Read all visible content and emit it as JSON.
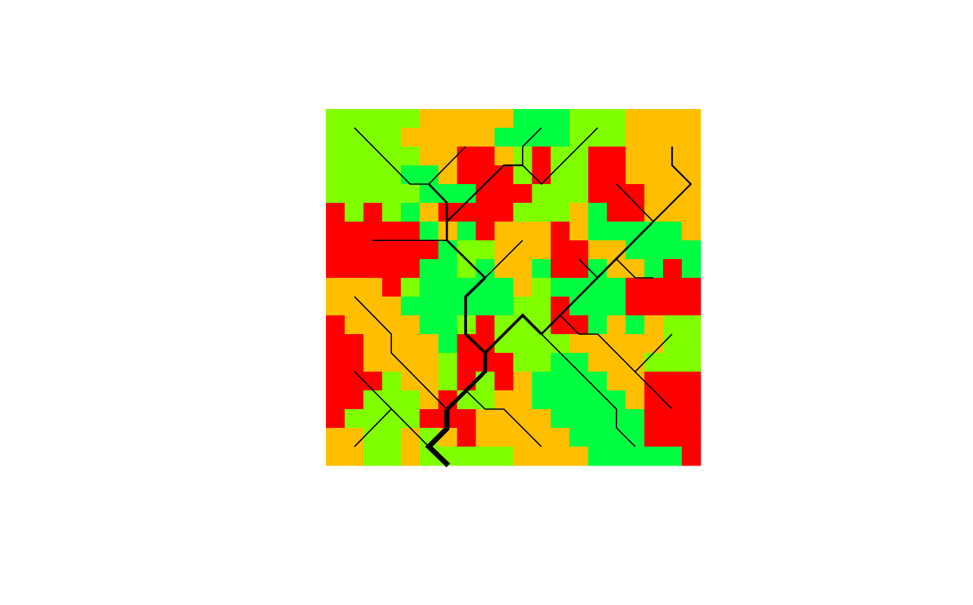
{
  "raster": {
    "colors": [
      "#80ff00",
      "#ffbf00",
      "#ff0000",
      "#00ff40"
    ],
    "cells": [
      [
        0,
        0,
        0,
        0,
        0,
        1,
        1,
        1,
        1,
        1,
        3,
        3,
        3,
        0,
        0,
        0,
        1,
        1,
        1,
        1
      ],
      [
        0,
        0,
        0,
        0,
        1,
        1,
        1,
        1,
        1,
        3,
        3,
        3,
        3,
        0,
        0,
        0,
        1,
        1,
        1,
        1
      ],
      [
        0,
        0,
        0,
        0,
        0,
        1,
        1,
        2,
        2,
        1,
        0,
        2,
        0,
        0,
        2,
        2,
        1,
        1,
        1,
        1
      ],
      [
        0,
        0,
        0,
        0,
        3,
        3,
        1,
        2,
        2,
        2,
        0,
        2,
        0,
        0,
        2,
        2,
        1,
        1,
        1,
        1
      ],
      [
        0,
        0,
        0,
        0,
        0,
        3,
        3,
        3,
        2,
        2,
        2,
        0,
        0,
        0,
        2,
        2,
        2,
        1,
        1,
        1
      ],
      [
        2,
        0,
        2,
        0,
        3,
        1,
        2,
        2,
        2,
        2,
        0,
        0,
        0,
        1,
        3,
        2,
        2,
        1,
        1,
        1
      ],
      [
        2,
        2,
        2,
        2,
        2,
        3,
        1,
        3,
        2,
        1,
        1,
        1,
        2,
        1,
        3,
        3,
        3,
        3,
        3,
        1
      ],
      [
        2,
        2,
        2,
        2,
        2,
        2,
        3,
        0,
        0,
        1,
        1,
        1,
        2,
        2,
        1,
        1,
        3,
        3,
        3,
        3
      ],
      [
        2,
        2,
        2,
        2,
        2,
        3,
        3,
        0,
        3,
        1,
        1,
        3,
        2,
        2,
        3,
        1,
        1,
        3,
        2,
        3
      ],
      [
        1,
        1,
        1,
        2,
        0,
        3,
        3,
        3,
        3,
        3,
        1,
        0,
        3,
        3,
        3,
        3,
        2,
        2,
        2,
        2
      ],
      [
        1,
        1,
        1,
        1,
        3,
        3,
        3,
        3,
        3,
        3,
        0,
        0,
        2,
        3,
        3,
        3,
        2,
        2,
        2,
        2
      ],
      [
        2,
        1,
        1,
        1,
        1,
        3,
        3,
        0,
        2,
        0,
        0,
        0,
        2,
        2,
        3,
        1,
        3,
        1,
        0,
        0
      ],
      [
        2,
        2,
        1,
        1,
        1,
        1,
        3,
        2,
        2,
        0,
        0,
        0,
        0,
        1,
        1,
        1,
        1,
        1,
        0,
        0
      ],
      [
        2,
        2,
        1,
        1,
        1,
        1,
        0,
        2,
        2,
        2,
        0,
        0,
        3,
        3,
        1,
        1,
        1,
        0,
        0,
        0
      ],
      [
        2,
        2,
        2,
        0,
        1,
        1,
        0,
        2,
        0,
        2,
        1,
        3,
        3,
        3,
        3,
        1,
        1,
        2,
        2,
        2
      ],
      [
        2,
        2,
        0,
        0,
        0,
        1,
        2,
        0,
        0,
        1,
        1,
        3,
        3,
        3,
        3,
        3,
        1,
        2,
        2,
        2
      ],
      [
        2,
        0,
        0,
        0,
        0,
        2,
        2,
        2,
        1,
        1,
        1,
        1,
        3,
        3,
        3,
        3,
        3,
        2,
        2,
        2
      ],
      [
        1,
        1,
        0,
        0,
        1,
        0,
        1,
        2,
        1,
        1,
        1,
        1,
        1,
        3,
        3,
        3,
        3,
        2,
        2,
        2
      ],
      [
        1,
        1,
        0,
        0,
        1,
        0,
        0,
        0,
        0,
        0,
        1,
        1,
        1,
        1,
        3,
        3,
        3,
        3,
        3,
        2
      ]
    ]
  }
}
